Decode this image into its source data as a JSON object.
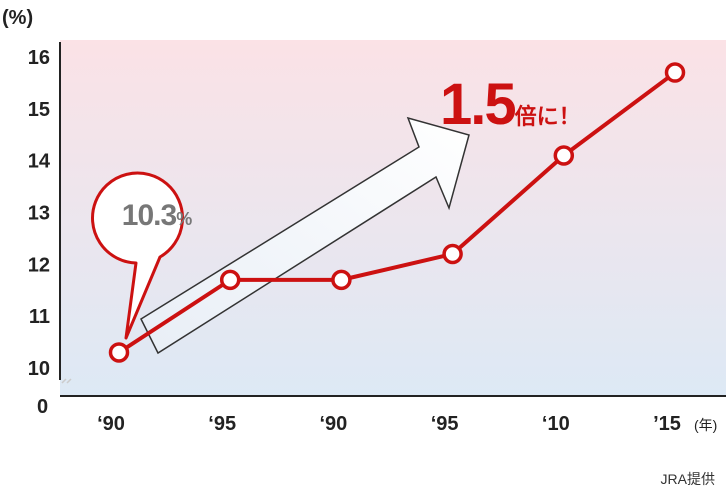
{
  "chart_data": {
    "type": "line",
    "y_unit_label": "(%)",
    "x_unit_label": "(年)",
    "x_tick_labels": [
      "‘90",
      "‘95",
      "‘90",
      "‘95",
      "‘10",
      "’15"
    ],
    "y_ticks": [
      10,
      11,
      12,
      13,
      14,
      15,
      16
    ],
    "y_zero_label": "0",
    "ylim": [
      10,
      16
    ],
    "axis_break": true,
    "series": [
      {
        "values": [
          10.3,
          11.7,
          11.7,
          12.2,
          14.1,
          15.7
        ],
        "color": "#cc1111"
      }
    ],
    "grid": false,
    "annotations": {
      "start_callout": {
        "value_text": "10.3",
        "unit_text": "%"
      },
      "growth_callout": {
        "multiplier_text": "1.5",
        "suffix_text": "倍に！"
      }
    },
    "source_credit": "JRA提供"
  },
  "colors": {
    "series": "#cc1111",
    "gradient_top": "#fbe2e6",
    "gradient_bottom": "#dde9f5",
    "axis": "#222222",
    "callout_text": "#777777",
    "growth_text": "#cc1111"
  }
}
